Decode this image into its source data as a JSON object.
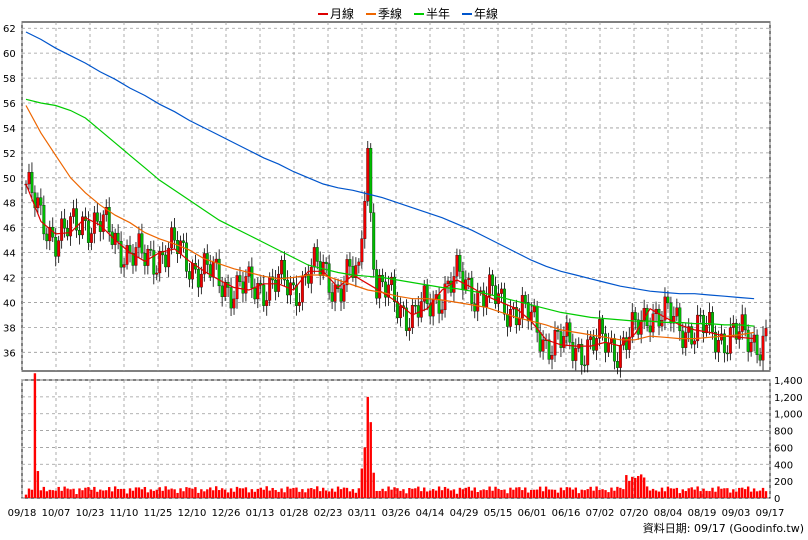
{
  "chart_data": [
    {
      "type": "candlestick",
      "x_labels": [
        "09/18",
        "10/07",
        "10/23",
        "11/10",
        "11/25",
        "12/10",
        "12/26",
        "01/13",
        "01/28",
        "02/23",
        "03/11",
        "03/26",
        "04/14",
        "04/29",
        "05/15",
        "06/01",
        "06/16",
        "07/02",
        "07/20",
        "08/04",
        "08/19",
        "09/03",
        "09/17"
      ],
      "yticks": [
        36,
        38,
        40,
        42,
        44,
        46,
        48,
        50,
        52,
        54,
        56,
        58,
        60,
        62
      ],
      "ylim": [
        34.5,
        62.5
      ],
      "grid": true,
      "legend": {
        "position": "top-center",
        "entries": [
          {
            "name": "月線",
            "color": "#dd0000"
          },
          {
            "name": "季線",
            "color": "#ee6600"
          },
          {
            "name": "半年",
            "color": "#00cc00"
          },
          {
            "name": "年線",
            "color": "#0055cc"
          }
        ]
      },
      "series": [
        {
          "name": "月線",
          "color": "#dd0000",
          "x": [
            0,
            5,
            10,
            15,
            20,
            25,
            30,
            35,
            40,
            45,
            50,
            55,
            60,
            65,
            70,
            75,
            80,
            85,
            90,
            95,
            100,
            105,
            110,
            115,
            120,
            125,
            130,
            135,
            140,
            145,
            150,
            155,
            160,
            165,
            170,
            175,
            180,
            185,
            190,
            195,
            200,
            205,
            210,
            215,
            220,
            225,
            230,
            235,
            240,
            245
          ],
          "y": [
            49.5,
            46.5,
            45.5,
            45.6,
            46.8,
            46.2,
            45.0,
            44.0,
            43.3,
            44.0,
            44.3,
            43.3,
            42.5,
            41.8,
            41.2,
            41.0,
            41.5,
            41.5,
            41.0,
            42.5,
            42.5,
            41.2,
            42.2,
            41.5,
            40.8,
            40.0,
            39.0,
            39.5,
            41.0,
            41.8,
            41.2,
            40.5,
            40.0,
            39.5,
            38.5,
            37.0,
            36.6,
            36.5,
            36.5,
            36.8,
            36.5,
            37.5,
            39.5,
            38.8,
            38.2,
            37.8,
            37.6,
            37.3,
            37.2,
            37.1
          ]
        },
        {
          "name": "季線",
          "color": "#ee6600",
          "x": [
            0,
            5,
            10,
            15,
            20,
            25,
            30,
            35,
            40,
            45,
            50,
            55,
            60,
            65,
            70,
            75,
            80,
            85,
            90,
            95,
            100,
            105,
            110,
            115,
            120,
            125,
            130,
            135,
            140,
            145,
            150,
            155,
            160,
            165,
            170,
            175,
            180,
            185,
            190,
            195,
            200,
            205,
            210,
            215,
            220,
            225,
            230,
            235,
            240,
            245
          ],
          "y": [
            55.8,
            53.6,
            51.8,
            50.0,
            48.8,
            47.8,
            47.0,
            46.4,
            45.6,
            45.1,
            44.7,
            44.2,
            43.5,
            43.1,
            42.7,
            42.4,
            42.1,
            41.9,
            42.0,
            42.2,
            42.2,
            41.8,
            41.4,
            41.0,
            40.8,
            40.5,
            40.3,
            40.3,
            40.2,
            40.0,
            39.8,
            39.6,
            39.2,
            38.8,
            38.5,
            38.2,
            37.8,
            37.6,
            37.4,
            37.2,
            37.0,
            37.0,
            37.3,
            37.2,
            37.1,
            37.1,
            37.2,
            37.3,
            37.4,
            37.6
          ]
        },
        {
          "name": "半年",
          "color": "#00cc00",
          "x": [
            0,
            5,
            10,
            15,
            20,
            25,
            30,
            35,
            40,
            45,
            50,
            55,
            60,
            65,
            70,
            75,
            80,
            85,
            90,
            95,
            100,
            105,
            110,
            115,
            120,
            125,
            130,
            135,
            140,
            145,
            150,
            155,
            160,
            165,
            170,
            175,
            180,
            185,
            190,
            195,
            200,
            205,
            210,
            215,
            220,
            225,
            230,
            235,
            240,
            245
          ],
          "y": [
            56.3,
            56.0,
            55.8,
            55.4,
            54.8,
            53.8,
            52.8,
            51.8,
            50.8,
            49.8,
            49.0,
            48.2,
            47.4,
            46.6,
            46.0,
            45.4,
            44.8,
            44.2,
            43.6,
            43.0,
            42.7,
            42.4,
            42.2,
            42.1,
            42.0,
            41.8,
            41.6,
            41.4,
            41.2,
            41.1,
            40.9,
            40.7,
            40.4,
            40.1,
            39.8,
            39.5,
            39.2,
            39.0,
            38.8,
            38.7,
            38.6,
            38.5,
            38.5,
            38.4,
            38.4,
            38.3,
            38.3,
            38.2,
            38.2,
            38.1
          ]
        },
        {
          "name": "年線",
          "color": "#0055cc",
          "x": [
            0,
            5,
            10,
            15,
            20,
            25,
            30,
            35,
            40,
            45,
            50,
            55,
            60,
            65,
            70,
            75,
            80,
            85,
            90,
            95,
            100,
            105,
            110,
            115,
            120,
            125,
            130,
            135,
            140,
            145,
            150,
            155,
            160,
            165,
            170,
            175,
            180,
            185,
            190,
            195,
            200,
            205,
            210,
            215,
            220,
            225,
            230,
            235,
            240,
            245
          ],
          "y": [
            61.7,
            61.1,
            60.4,
            59.8,
            59.2,
            58.5,
            57.9,
            57.2,
            56.6,
            55.9,
            55.3,
            54.6,
            54.0,
            53.4,
            52.8,
            52.2,
            51.6,
            51.1,
            50.5,
            50.0,
            49.5,
            49.2,
            49.0,
            48.7,
            48.4,
            48.0,
            47.6,
            47.2,
            46.8,
            46.3,
            45.8,
            45.2,
            44.6,
            44.0,
            43.4,
            42.9,
            42.5,
            42.2,
            41.9,
            41.6,
            41.3,
            41.1,
            40.9,
            40.8,
            40.7,
            40.7,
            40.6,
            40.5,
            40.4,
            40.3
          ]
        }
      ]
    },
    {
      "type": "bar",
      "yticks": [
        0,
        200,
        400,
        600,
        800,
        1000,
        1200,
        1400
      ],
      "ylim": [
        0,
        1400
      ],
      "color": "#ff0000",
      "grid": true
    }
  ],
  "credit": "資料日期: 09/17  (Goodinfo.tw)"
}
